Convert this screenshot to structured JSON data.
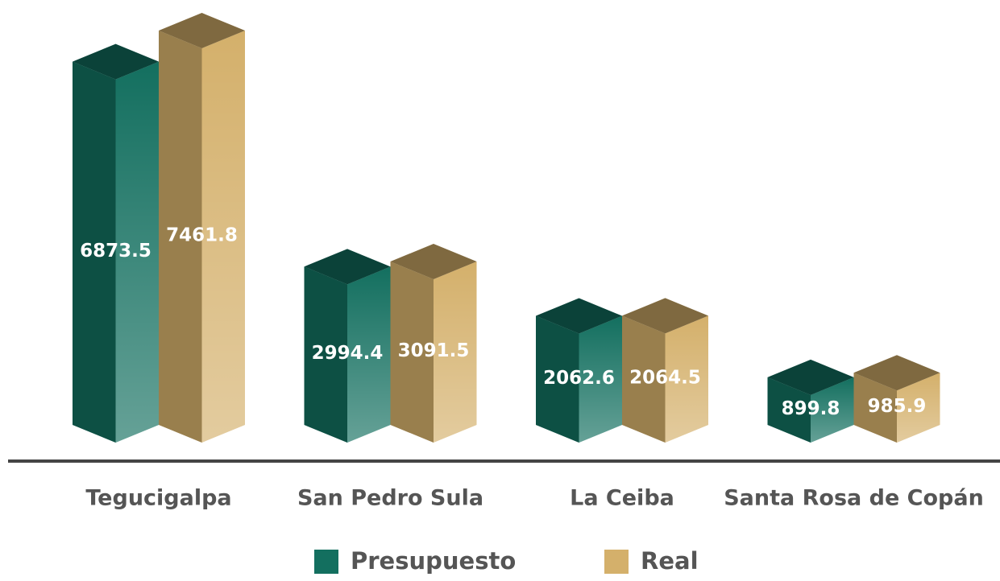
{
  "chart_data": {
    "type": "bar3d",
    "categories": [
      "Tegucigalpa",
      "San Pedro Sula",
      "La Ceiba",
      "Santa Rosa de Copán"
    ],
    "series": [
      {
        "name": "Presupuesto",
        "color": "#136f5f",
        "values": [
          6873.5,
          2994.4,
          2062.6,
          899.8
        ]
      },
      {
        "name": "Real",
        "color": "#d4b06b",
        "values": [
          7461.8,
          3091.5,
          2064.5,
          985.9
        ]
      }
    ]
  }
}
